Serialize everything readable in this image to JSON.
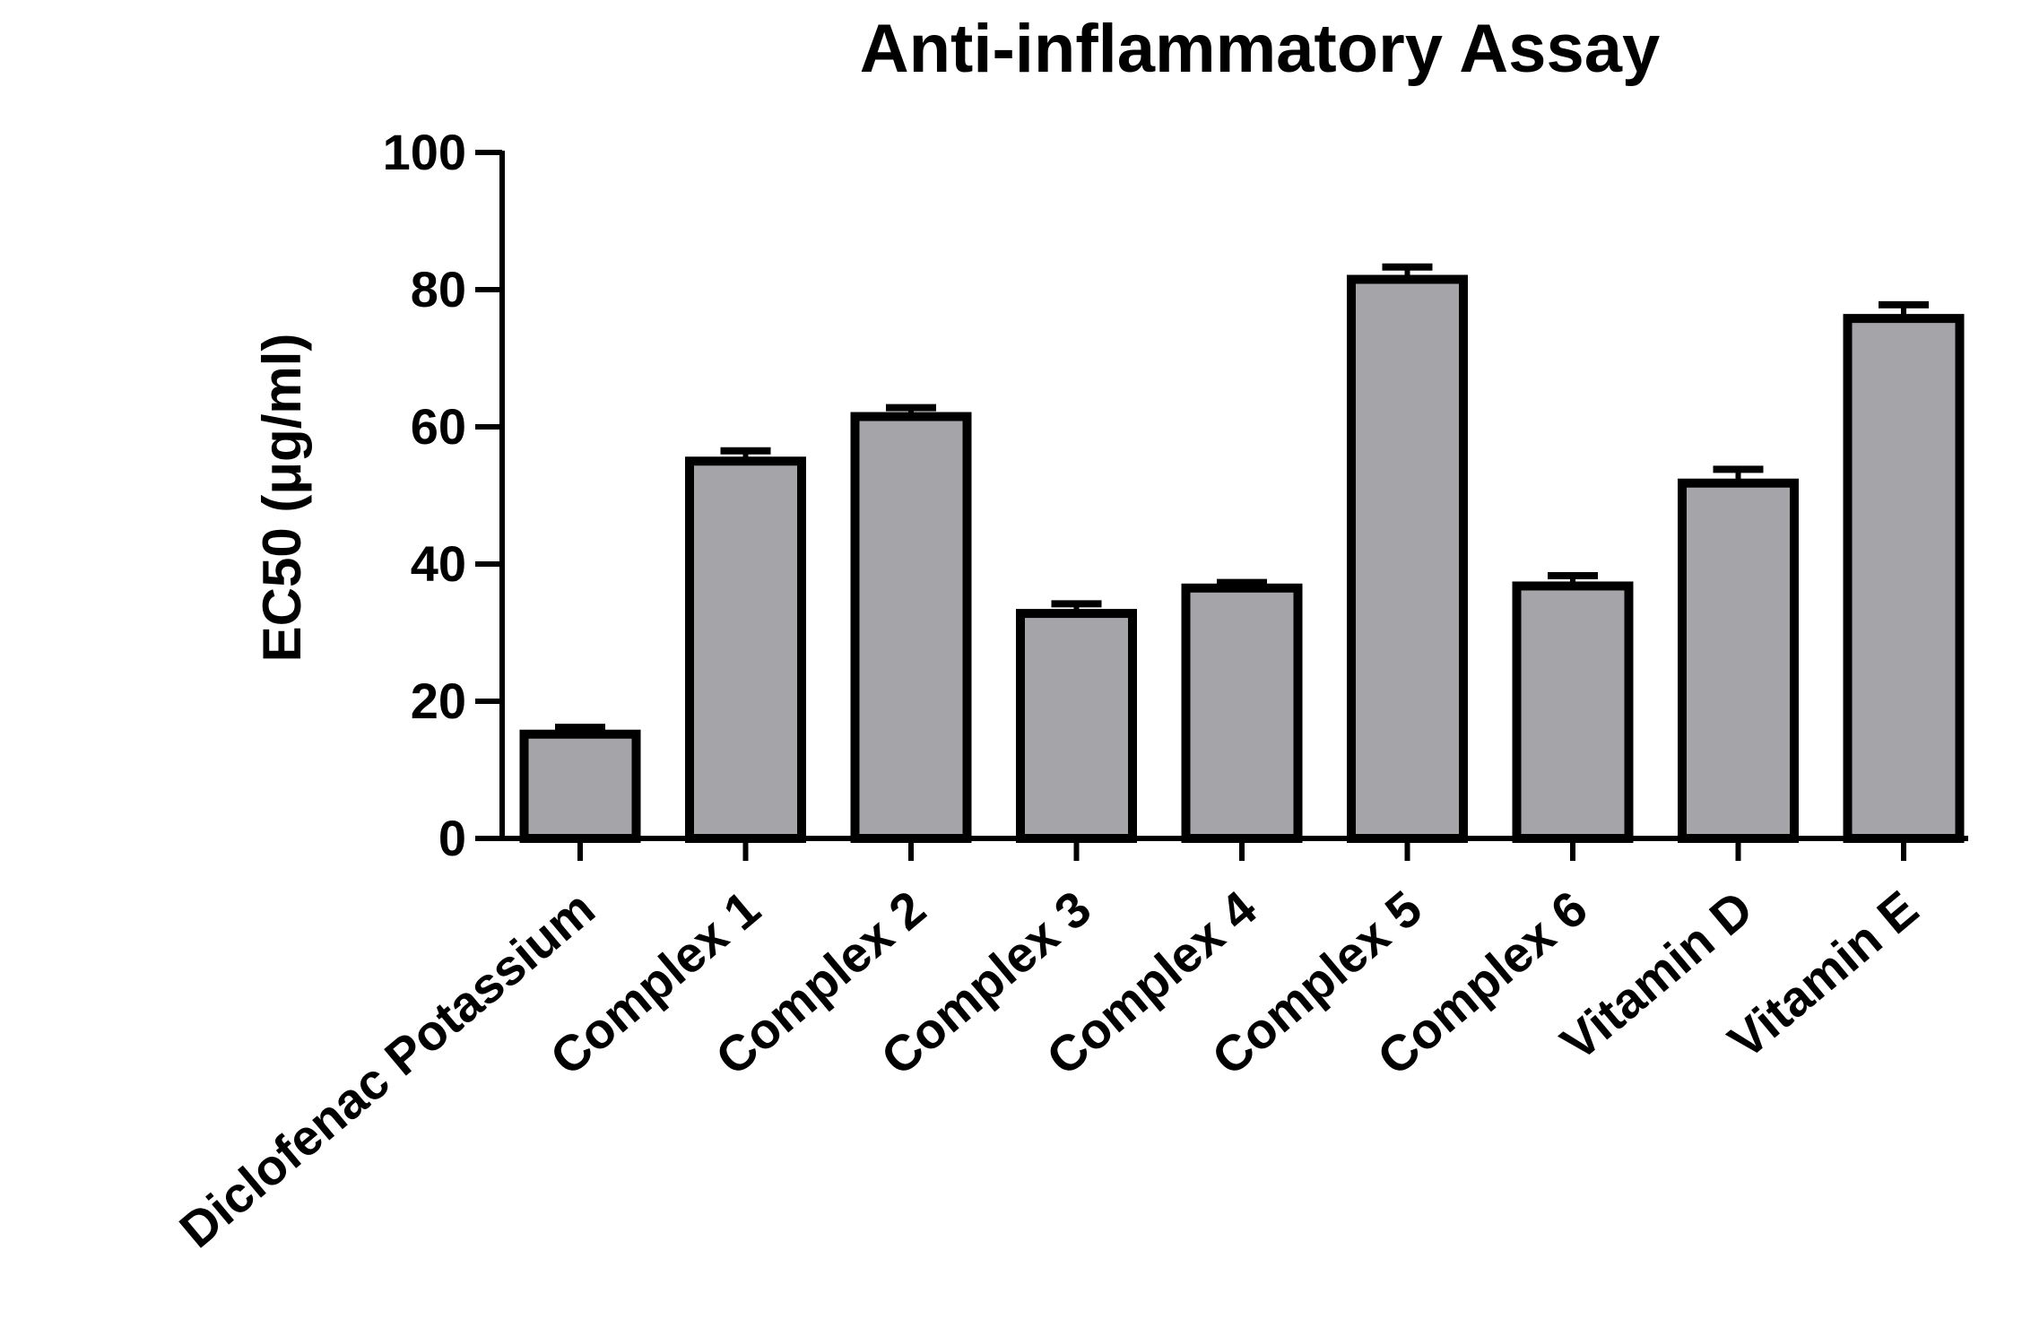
{
  "chart_data": {
    "type": "bar",
    "title": "Anti-inflammatory Assay",
    "xlabel": "",
    "ylabel": "EC50 (μg/ml)",
    "ylim": [
      0,
      100
    ],
    "yticks": [
      0,
      20,
      40,
      60,
      80,
      100
    ],
    "grid": false,
    "legend": "none",
    "categories": [
      "Diclofenac Potassium",
      "Complex 1",
      "Complex 2",
      "Complex 3",
      "Complex 4",
      "Complex 5",
      "Complex 6",
      "Vitamin D",
      "Vitamin E"
    ],
    "values": [
      15.2,
      55.0,
      61.5,
      32.8,
      36.5,
      81.5,
      36.8,
      51.8,
      75.8
    ],
    "error": [
      1.0,
      1.5,
      1.3,
      1.4,
      0.8,
      1.8,
      1.5,
      2.0,
      2.0
    ],
    "colors": {
      "bar_fill": "#a5a4a9",
      "bar_stroke": "#000000",
      "axis": "#000000"
    }
  }
}
